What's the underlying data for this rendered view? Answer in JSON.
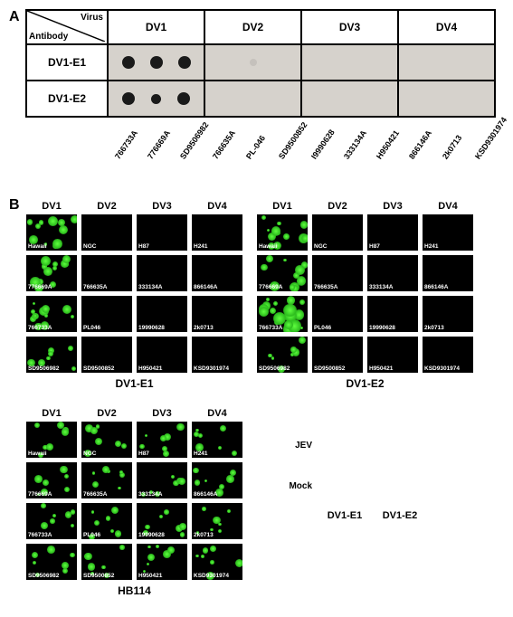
{
  "panelA": {
    "label": "A",
    "cornerTop": "Virus",
    "cornerBottom": "Antibody",
    "dvHeaders": [
      "DV1",
      "DV2",
      "DV3",
      "DV4"
    ],
    "rows": [
      {
        "label": "DV1-E1",
        "pattern": [
          "strong",
          "strong",
          "strong",
          "empty",
          "faint",
          "empty",
          "empty",
          "empty",
          "empty",
          "empty",
          "empty",
          "empty"
        ]
      },
      {
        "label": "DV1-E2",
        "pattern": [
          "strong",
          "small",
          "strong",
          "empty",
          "empty",
          "empty",
          "empty",
          "empty",
          "empty",
          "empty",
          "empty",
          "empty"
        ]
      }
    ],
    "strains": [
      "766733A",
      "776669A",
      "SD9506982",
      "766635A",
      "PL-046",
      "SD9500852",
      "I9990628",
      "333134A",
      "H950421",
      "866146A",
      "2k0713",
      "KSD9301974"
    ]
  },
  "panelB": {
    "label": "B",
    "dvHeaders": [
      "DV1",
      "DV2",
      "DV3",
      "DV4"
    ],
    "blocks": [
      {
        "title": "DV1-E1",
        "rows": [
          {
            "cells": [
              {
                "l": "Hawaii",
                "f": "high"
              },
              {
                "l": "NGC",
                "f": "none"
              },
              {
                "l": "H87",
                "f": "none"
              },
              {
                "l": "H241",
                "f": "none"
              }
            ]
          },
          {
            "cells": [
              {
                "l": "776669A",
                "f": "high"
              },
              {
                "l": "766635A",
                "f": "none"
              },
              {
                "l": "333134A",
                "f": "none"
              },
              {
                "l": "866146A",
                "f": "none"
              }
            ]
          },
          {
            "cells": [
              {
                "l": "766733A",
                "f": "high"
              },
              {
                "l": "PL046",
                "f": "none"
              },
              {
                "l": "19990628",
                "f": "none"
              },
              {
                "l": "2k0713",
                "f": "none"
              }
            ]
          },
          {
            "cells": [
              {
                "l": "SD9506982",
                "f": "med"
              },
              {
                "l": "SD9500852",
                "f": "none"
              },
              {
                "l": "H950421",
                "f": "none"
              },
              {
                "l": "KSD9301974",
                "f": "none"
              }
            ]
          }
        ]
      },
      {
        "title": "DV1-E2",
        "rows": [
          {
            "cells": [
              {
                "l": "Hawaii",
                "f": "high"
              },
              {
                "l": "NGC",
                "f": "none"
              },
              {
                "l": "H87",
                "f": "none"
              },
              {
                "l": "H241",
                "f": "none"
              }
            ]
          },
          {
            "cells": [
              {
                "l": "776669A",
                "f": "high"
              },
              {
                "l": "766635A",
                "f": "none"
              },
              {
                "l": "333134A",
                "f": "none"
              },
              {
                "l": "866146A",
                "f": "none"
              }
            ]
          },
          {
            "cells": [
              {
                "l": "766733A",
                "f": "vhigh"
              },
              {
                "l": "PL046",
                "f": "none"
              },
              {
                "l": "19990628",
                "f": "none"
              },
              {
                "l": "2k0713",
                "f": "none"
              }
            ]
          },
          {
            "cells": [
              {
                "l": "SD9506982",
                "f": "med"
              },
              {
                "l": "SD9500852",
                "f": "none"
              },
              {
                "l": "H950421",
                "f": "none"
              },
              {
                "l": "KSD9301974",
                "f": "none"
              }
            ]
          }
        ]
      },
      {
        "title": "HB114",
        "rows": [
          {
            "cells": [
              {
                "l": "Hawaii",
                "f": "med"
              },
              {
                "l": "NGC",
                "f": "med"
              },
              {
                "l": "H87",
                "f": "med"
              },
              {
                "l": "H241",
                "f": "med"
              }
            ]
          },
          {
            "cells": [
              {
                "l": "776669A",
                "f": "med"
              },
              {
                "l": "766635A",
                "f": "med"
              },
              {
                "l": "333134A",
                "f": "med"
              },
              {
                "l": "866146A",
                "f": "med"
              }
            ]
          },
          {
            "cells": [
              {
                "l": "766733A",
                "f": "med"
              },
              {
                "l": "PL046",
                "f": "med"
              },
              {
                "l": "19990628",
                "f": "med"
              },
              {
                "l": "2k0713",
                "f": "med"
              }
            ]
          },
          {
            "cells": [
              {
                "l": "SD9506982",
                "f": "med"
              },
              {
                "l": "SD9500852",
                "f": "med"
              },
              {
                "l": "H950421",
                "f": "med"
              },
              {
                "l": "KSD9301974",
                "f": "med"
              }
            ]
          }
        ]
      }
    ],
    "jev": {
      "rowLabels": [
        "JEV",
        "Mock"
      ],
      "colLabels": [
        "DV1-E1",
        "DV1-E2"
      ]
    }
  },
  "colors": {
    "blot_bg": "#d6d2cc",
    "dot": "#1a1a1a",
    "fluor": "#5fff3f",
    "black": "#000000"
  }
}
